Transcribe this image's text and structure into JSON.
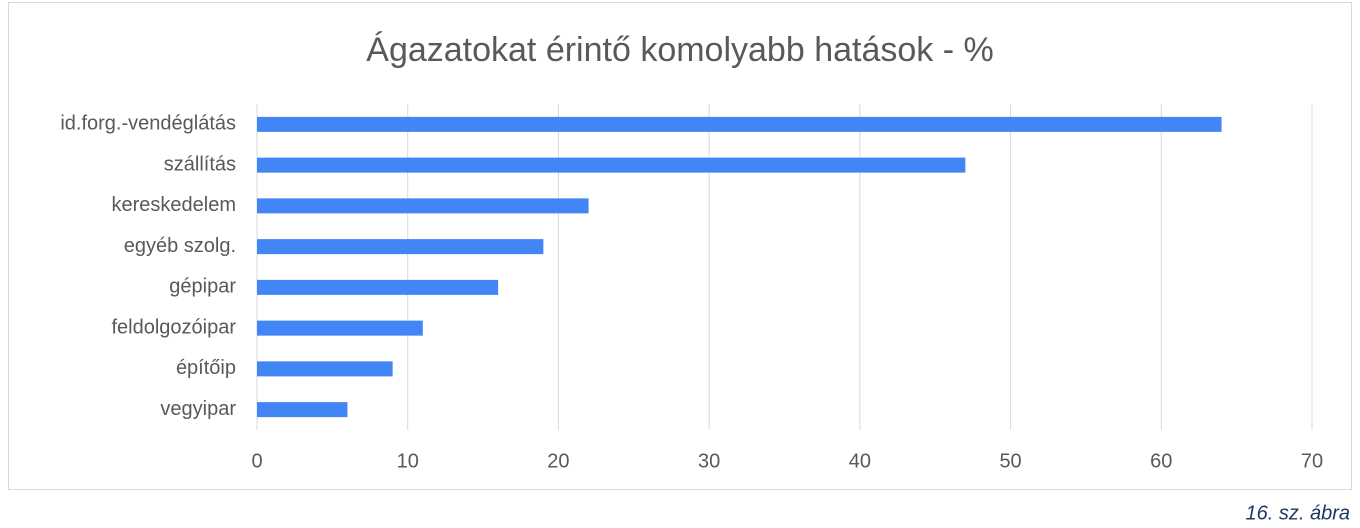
{
  "chart_data": {
    "type": "barh",
    "title": "Ágazatokat érintő komolyabb hatások - %",
    "categories": [
      "id.forg.-vendéglátás",
      "szállítás",
      "kereskedelem",
      "egyéb szolg.",
      "gépipar",
      "feldolgozóipar",
      "építőip",
      "vegyipar"
    ],
    "values": [
      64,
      47,
      22,
      19,
      16,
      11,
      9,
      6
    ],
    "color": "#4285f4",
    "xlim": [
      0,
      70
    ],
    "xticks": [
      0,
      10,
      20,
      30,
      40,
      50,
      60,
      70
    ],
    "grid": true,
    "caption": "16. sz. ábra"
  }
}
